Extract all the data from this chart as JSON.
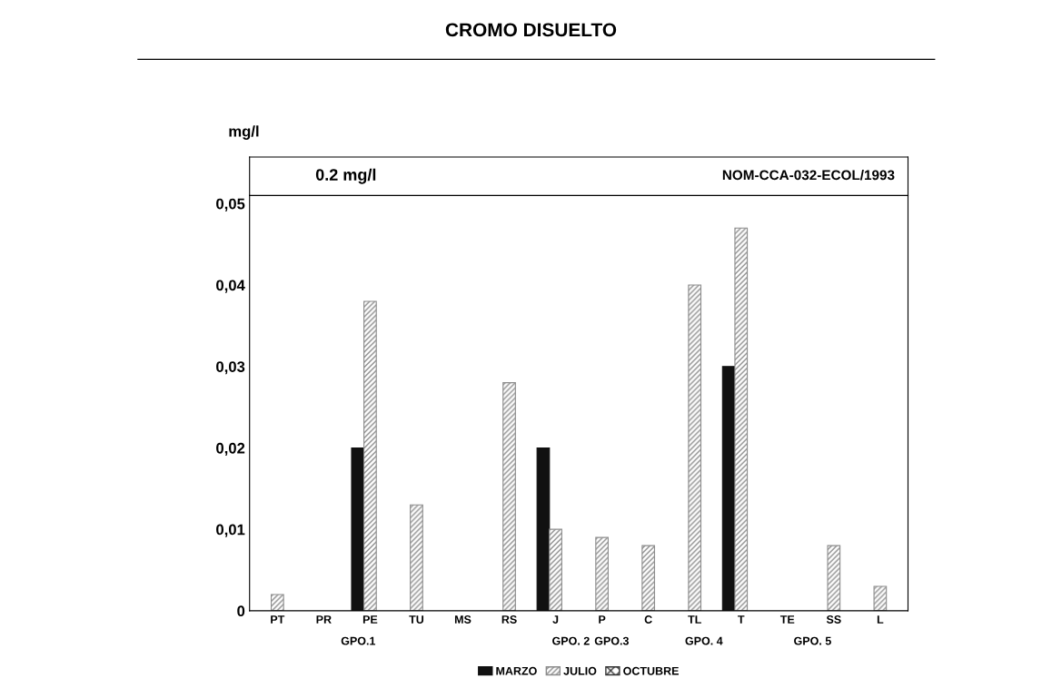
{
  "chart_data": {
    "type": "bar",
    "title": "CROMO DISUELTO",
    "ylabel": "mg/l",
    "categories": [
      "PT",
      "PR",
      "PE",
      "TU",
      "MS",
      "RS",
      "J",
      "P",
      "C",
      "TL",
      "T",
      "TE",
      "SS",
      "L"
    ],
    "series": [
      {
        "name": "MARZO",
        "color": "#111111",
        "values": [
          null,
          null,
          0.02,
          null,
          null,
          null,
          0.02,
          null,
          null,
          null,
          0.03,
          null,
          null,
          null
        ]
      },
      {
        "name": "JULIO",
        "color": "#8c8c8c",
        "values": [
          0.002,
          null,
          0.038,
          0.013,
          null,
          0.028,
          0.01,
          0.009,
          0.008,
          0.04,
          0.047,
          null,
          0.008,
          0.003
        ]
      },
      {
        "name": "OCTUBRE",
        "color": "#333333",
        "values": [
          null,
          null,
          null,
          null,
          null,
          null,
          null,
          null,
          null,
          null,
          null,
          null,
          null,
          null
        ]
      }
    ],
    "ylim": [
      0,
      0.051
    ],
    "yticks": [
      0,
      {
        "value": 0.01,
        "label": "0,01"
      },
      {
        "value": 0.02,
        "label": "0,02"
      },
      {
        "value": 0.03,
        "label": "0,03"
      },
      {
        "value": 0.04,
        "label": "0,04"
      },
      {
        "value": 0.05,
        "label": "0,05"
      }
    ],
    "legend": "bottom",
    "grid": false,
    "annotations": [
      "0.2 mg/l",
      "NOM-CCA-032-ECOL/1993",
      "GPO.1",
      "GPO. 2",
      "GPO.3",
      "GPO. 4",
      "GPO. 5"
    ]
  }
}
